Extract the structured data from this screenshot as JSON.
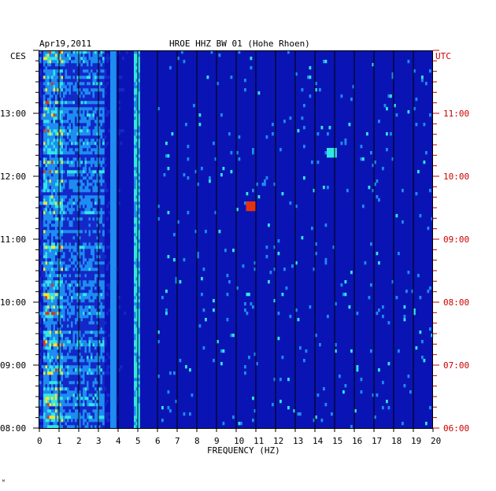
{
  "header": {
    "date": "Apr19,2011",
    "station": "HROE HHZ BW 01 (Hohe Rhoen)"
  },
  "chart_data": {
    "type": "heatmap",
    "title": "HROE HHZ BW 01 (Hohe Rhoen)",
    "date": "Apr19,2011",
    "xlabel": "FREQUENCY (HZ)",
    "xlim": [
      0,
      20
    ],
    "x_ticks": [
      "0",
      "1",
      "2",
      "3",
      "4",
      "5",
      "6",
      "7",
      "8",
      "9",
      "10",
      "11",
      "12",
      "13",
      "14",
      "15",
      "16",
      "17",
      "18",
      "19",
      "20"
    ],
    "left_axis": {
      "label": "CES",
      "ticks": [
        {
          "label": "13:00",
          "hour": 13
        },
        {
          "label": "12:00",
          "hour": 12
        },
        {
          "label": "11:00",
          "hour": 11
        },
        {
          "label": "10:00",
          "hour": 10
        },
        {
          "label": "09:00",
          "hour": 9
        },
        {
          "label": "08:00",
          "hour": 8
        }
      ],
      "range_hours": [
        8,
        14
      ]
    },
    "right_axis": {
      "label": "UTC",
      "color": "#cc0000",
      "ticks": [
        "11:00",
        "10:00",
        "09:00",
        "08:00",
        "07:00",
        "06:00"
      ]
    },
    "colors": {
      "background": "#0a14b4",
      "low": "#1428c8",
      "mid": "#1e8cf0",
      "high": "#32e6e6",
      "peak": "#f0e632",
      "max": "#e63214"
    },
    "features": [
      {
        "type": "energy_band",
        "freq_range": [
          0.2,
          1.2
        ],
        "intensity": "high"
      },
      {
        "type": "energy_band",
        "freq_range": [
          1.2,
          3.2
        ],
        "intensity": "mid"
      },
      {
        "type": "spectral_line",
        "freq": 3.7,
        "intensity": "mid"
      },
      {
        "type": "spectral_line",
        "freq": 4.9,
        "intensity": "high"
      },
      {
        "type": "spot",
        "freq": 10.7,
        "hour_ces": 11.5,
        "intensity": "peak"
      },
      {
        "type": "spot",
        "freq": 14.8,
        "hour_ces": 12.37,
        "intensity": "high"
      }
    ]
  },
  "footer": {
    "mark": "ᴹ"
  }
}
